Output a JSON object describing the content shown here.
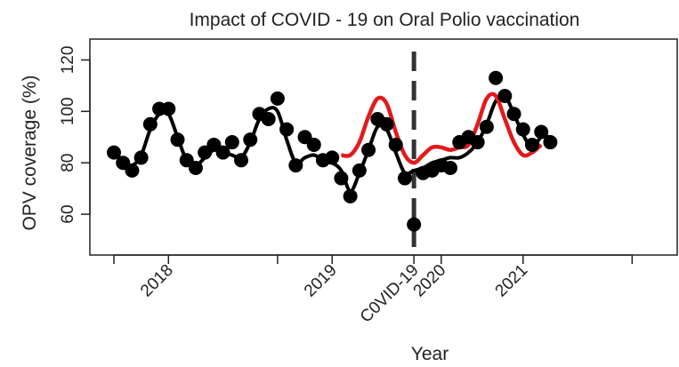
{
  "chart_data": {
    "type": "line",
    "title": "Impact of COVID - 19 on Oral Polio vaccination",
    "xlabel": "Year",
    "ylabel": "OPV coverage (%)",
    "ylim": [
      50,
      125
    ],
    "y_ticks": [
      60,
      80,
      100,
      120
    ],
    "xlim": [
      0,
      60
    ],
    "x_ticks": [
      {
        "x": 0,
        "label": ""
      },
      {
        "x": 6,
        "label": "2018"
      },
      {
        "x": 18,
        "label": ""
      },
      {
        "x": 24,
        "label": "2019"
      },
      {
        "x": 33,
        "label": "C0VID-19"
      },
      {
        "x": 36,
        "label": "2020"
      },
      {
        "x": 45,
        "label": "2021"
      },
      {
        "x": 57,
        "label": ""
      }
    ],
    "covid_line_x": 33,
    "colors": {
      "observed": "#000000",
      "predicted": "#e31a1c",
      "covid_marker": "#333333"
    },
    "series": [
      {
        "role": "observed points",
        "points": [
          [
            0,
            84
          ],
          [
            1,
            80
          ],
          [
            2,
            77
          ],
          [
            3,
            82
          ],
          [
            4,
            95
          ],
          [
            5,
            101
          ],
          [
            6,
            101
          ],
          [
            7,
            89
          ],
          [
            8,
            81
          ],
          [
            9,
            78
          ],
          [
            10,
            84
          ],
          [
            11,
            87
          ],
          [
            12,
            84
          ],
          [
            13,
            88
          ],
          [
            14,
            81
          ],
          [
            15,
            89
          ],
          [
            16,
            99
          ],
          [
            17,
            97
          ],
          [
            18,
            105
          ],
          [
            19,
            93
          ],
          [
            20,
            79
          ],
          [
            21,
            90
          ],
          [
            22,
            87
          ],
          [
            23,
            81
          ],
          [
            24,
            82
          ],
          [
            25,
            74
          ],
          [
            26,
            67
          ],
          [
            27,
            77
          ],
          [
            28,
            85
          ],
          [
            29,
            97
          ],
          [
            30,
            95
          ],
          [
            31,
            87
          ],
          [
            32,
            74
          ],
          [
            33,
            56
          ],
          [
            34,
            76
          ],
          [
            35,
            77
          ],
          [
            36,
            79
          ],
          [
            37,
            78
          ],
          [
            38,
            88
          ],
          [
            39,
            90
          ],
          [
            40,
            88
          ],
          [
            41,
            94
          ],
          [
            42,
            113
          ],
          [
            43,
            106
          ],
          [
            44,
            99
          ],
          [
            45,
            93
          ],
          [
            46,
            87
          ],
          [
            47,
            92
          ],
          [
            48,
            88
          ]
        ]
      },
      {
        "role": "observed trend",
        "points": [
          [
            0,
            84
          ],
          [
            1,
            81
          ],
          [
            2,
            79
          ],
          [
            3,
            83
          ],
          [
            4,
            93
          ],
          [
            5,
            99
          ],
          [
            6,
            99
          ],
          [
            7,
            90
          ],
          [
            8,
            81
          ],
          [
            9,
            79
          ],
          [
            10,
            82
          ],
          [
            11,
            85
          ],
          [
            12,
            84
          ],
          [
            13,
            83
          ],
          [
            14,
            82
          ],
          [
            15,
            88
          ],
          [
            16,
            97
          ],
          [
            17,
            101
          ],
          [
            18,
            100
          ],
          [
            19,
            89
          ],
          [
            20,
            80
          ],
          [
            21,
            82
          ],
          [
            22,
            83
          ],
          [
            23,
            81
          ],
          [
            24,
            80
          ],
          [
            25,
            77
          ],
          [
            26,
            69
          ],
          [
            27,
            76
          ],
          [
            28,
            85
          ],
          [
            29,
            94
          ],
          [
            30,
            93
          ],
          [
            31,
            84
          ],
          [
            32,
            76
          ],
          [
            33,
            77
          ],
          [
            34,
            78
          ],
          [
            35,
            80
          ],
          [
            36,
            81
          ],
          [
            37,
            82
          ],
          [
            38,
            82
          ],
          [
            39,
            84
          ],
          [
            40,
            88
          ],
          [
            41,
            95
          ],
          [
            42,
            104
          ],
          [
            43,
            106
          ],
          [
            44,
            99
          ],
          [
            45,
            91
          ],
          [
            46,
            86
          ],
          [
            47,
            90
          ],
          [
            48,
            90
          ]
        ]
      },
      {
        "role": "predicted",
        "points": [
          [
            25,
            83
          ],
          [
            26,
            83
          ],
          [
            27,
            88
          ],
          [
            28,
            98
          ],
          [
            29,
            105
          ],
          [
            30,
            103
          ],
          [
            31,
            92
          ],
          [
            32,
            83
          ],
          [
            33,
            80
          ],
          [
            34,
            83
          ],
          [
            35,
            86
          ],
          [
            36,
            86
          ],
          [
            37,
            85
          ],
          [
            38,
            86
          ],
          [
            39,
            87
          ],
          [
            40,
            95
          ],
          [
            41,
            105
          ],
          [
            42,
            106
          ],
          [
            43,
            97
          ],
          [
            44,
            88
          ],
          [
            45,
            83
          ],
          [
            46,
            84
          ],
          [
            47,
            87
          ]
        ]
      }
    ]
  }
}
